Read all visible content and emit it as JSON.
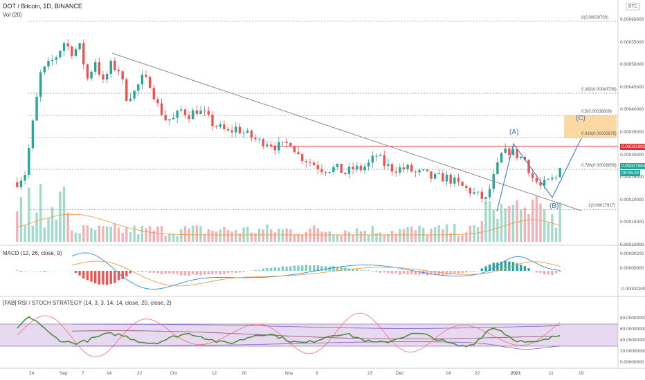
{
  "header": {
    "title": "DOT / Bitcoin, 1D, BINANCE",
    "vol_label": "Vol (20)",
    "currency_badge": "BTC"
  },
  "macd": {
    "label": "MACD (12, 26, close, 9)",
    "axis_ticks": [
      "0.00000200",
      "0.00000000",
      "-0.00000200"
    ]
  },
  "rsi": {
    "label": "[FAB] RSI / STOCH STRATEGY (14, 3, 3, 14, 14, close, 20, close, 2)",
    "axis_ticks": [
      "80.00000000",
      "60.00000000",
      "40.00000000",
      "20.00000000",
      "0.00000000"
    ]
  },
  "price_axis_ticks": [
    "0.00060000",
    "0.00055000",
    "0.00050000",
    "0.00045000",
    "0.00040000",
    "0.00035000",
    "0.00030000",
    "0.00025000",
    "0.00020000",
    "0.00015000",
    "0.00010000"
  ],
  "current_price": "0.00027984",
  "countdown": "09:06:24",
  "resistance_price": "0.00031992",
  "fib_levels": [
    {
      "text": "0(0.00059700)",
      "price": 0.000597
    },
    {
      "text": "0.382(0.00043739)",
      "price": 0.00043739
    },
    {
      "text": "0.5(0.00038809)",
      "price": 0.00038809
    },
    {
      "text": "0.618(0.00033878)",
      "price": 0.00033878
    },
    {
      "text": "0.786(0.00026859)",
      "price": 0.00026859
    },
    {
      "text": "1(0.00017917)",
      "price": 0.00017917
    }
  ],
  "wave_labels": [
    "(A)",
    "(B)",
    "(C)"
  ],
  "time_axis": [
    "24",
    "Sep",
    "7",
    "14",
    "22",
    "Oct",
    "12",
    "20",
    "Nov",
    "9",
    "23",
    "Dec",
    "14",
    "22",
    "2021",
    "11",
    "19"
  ],
  "colors": {
    "up": "#26a69a",
    "down": "#ef5350",
    "resistance": "#e03030",
    "wave": "#4a84d0",
    "zone": "#f7b955",
    "rsi_band": "#b48ad0"
  },
  "chart_data": {
    "type": "candlestick",
    "x_unit": "days since first candle",
    "y_unit": "BTC",
    "ylim": [
      0.0001,
      0.000615
    ],
    "candles": []
  }
}
